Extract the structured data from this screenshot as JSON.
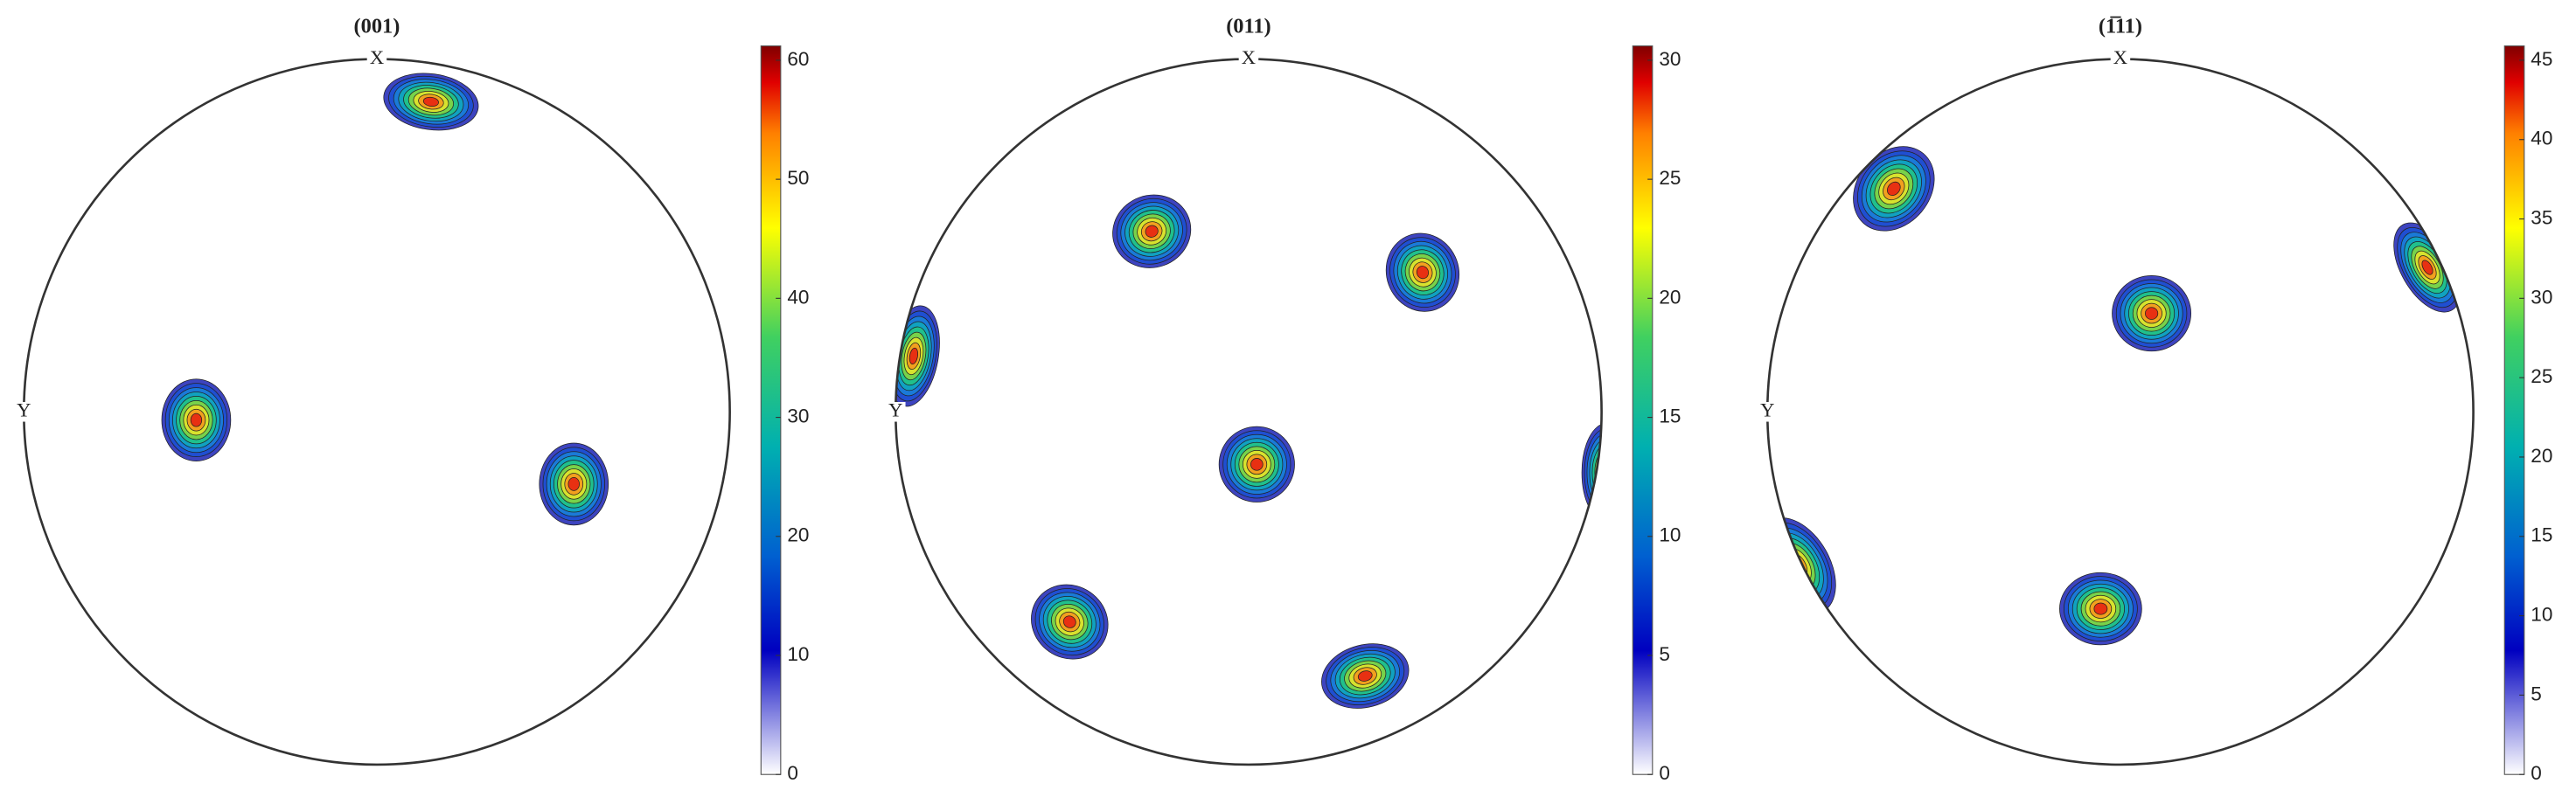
{
  "chart_data": [
    {
      "type": "pole-figure",
      "title": "(001)",
      "x_label": "X",
      "y_label": "Y",
      "clim": [
        0,
        61.2
      ],
      "cticks": [
        0,
        10,
        20,
        30,
        40,
        50,
        60
      ]
    },
    {
      "type": "pole-figure",
      "title": "(011)",
      "x_label": "X",
      "y_label": "Y",
      "clim": [
        0,
        30.6
      ],
      "cticks": [
        0,
        5,
        10,
        15,
        20,
        25,
        30
      ]
    },
    {
      "type": "pole-figure",
      "title": "(1̅11)",
      "x_label": "X",
      "y_label": "Y",
      "clim": [
        0,
        45.9
      ],
      "cticks": [
        0,
        5,
        10,
        15,
        20,
        25,
        30,
        35,
        40,
        45
      ]
    }
  ]
}
